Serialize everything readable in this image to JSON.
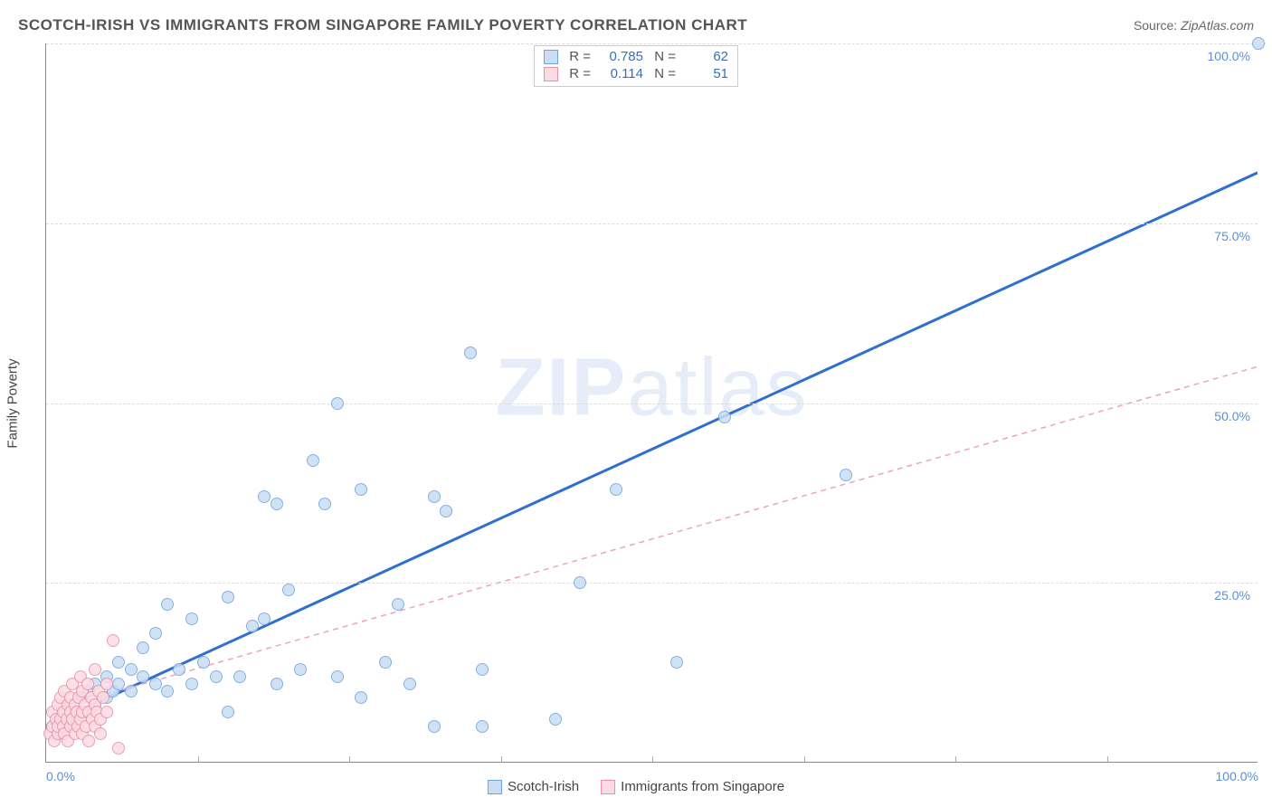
{
  "chart": {
    "type": "scatter",
    "title": "SCOTCH-IRISH VS IMMIGRANTS FROM SINGAPORE FAMILY POVERTY CORRELATION CHART",
    "source_prefix": "Source:",
    "source_name": "ZipAtlas.com",
    "ylabel": "Family Poverty",
    "watermark_bold": "ZIP",
    "watermark_rest": "atlas",
    "xlim": [
      0,
      100
    ],
    "ylim": [
      0,
      100
    ],
    "y_ticks": [
      0,
      25,
      50,
      75,
      100
    ],
    "y_tick_labels": [
      "0.0%",
      "25.0%",
      "50.0%",
      "75.0%",
      "100.0%"
    ],
    "x_ticks": [
      0,
      100
    ],
    "x_tick_labels": [
      "0.0%",
      "100.0%"
    ],
    "x_inner_ticks": [
      12.5,
      25,
      37.5,
      50,
      62.5,
      75,
      87.5
    ],
    "grid_color": "#dddddd",
    "axis_color": "#888888",
    "background_color": "#ffffff",
    "tick_label_color": "#5b8fd6",
    "title_color": "#555555"
  },
  "series": [
    {
      "id": "scotch_irish",
      "label": "Scotch-Irish",
      "marker_fill": "#c9ddf4",
      "marker_stroke": "#6fa3de",
      "marker_size_px": 14,
      "marker_opacity": 0.85,
      "trend": {
        "type": "solid",
        "color": "#2f6fd0",
        "width": 3,
        "y_at_x0": 5.0,
        "y_at_x100": 82.0
      },
      "stats": {
        "R": "0.785",
        "N": "62"
      },
      "points": [
        [
          0.5,
          5
        ],
        [
          1,
          4
        ],
        [
          1,
          6
        ],
        [
          1.5,
          7
        ],
        [
          2,
          5
        ],
        [
          2,
          8
        ],
        [
          2.5,
          6
        ],
        [
          3,
          9
        ],
        [
          3,
          7
        ],
        [
          3.5,
          10
        ],
        [
          4,
          8
        ],
        [
          4,
          11
        ],
        [
          5,
          9
        ],
        [
          5,
          12
        ],
        [
          5.5,
          10
        ],
        [
          6,
          11
        ],
        [
          6,
          14
        ],
        [
          7,
          10
        ],
        [
          7,
          13
        ],
        [
          8,
          12
        ],
        [
          8,
          16
        ],
        [
          9,
          11
        ],
        [
          9,
          18
        ],
        [
          10,
          10
        ],
        [
          10,
          22
        ],
        [
          11,
          13
        ],
        [
          12,
          11
        ],
        [
          12,
          20
        ],
        [
          13,
          14
        ],
        [
          14,
          12
        ],
        [
          15,
          7
        ],
        [
          15,
          23
        ],
        [
          16,
          12
        ],
        [
          17,
          19
        ],
        [
          18,
          20
        ],
        [
          18,
          37
        ],
        [
          19,
          11
        ],
        [
          19,
          36
        ],
        [
          20,
          24
        ],
        [
          21,
          13
        ],
        [
          22,
          42
        ],
        [
          23,
          36
        ],
        [
          24,
          12
        ],
        [
          24,
          50
        ],
        [
          26,
          9
        ],
        [
          26,
          38
        ],
        [
          28,
          14
        ],
        [
          29,
          22
        ],
        [
          30,
          11
        ],
        [
          32,
          5
        ],
        [
          32,
          37
        ],
        [
          33,
          35
        ],
        [
          35,
          57
        ],
        [
          36,
          5
        ],
        [
          36,
          13
        ],
        [
          42,
          6
        ],
        [
          44,
          25
        ],
        [
          47,
          38
        ],
        [
          52,
          14
        ],
        [
          56,
          48
        ],
        [
          66,
          40
        ],
        [
          100,
          100
        ]
      ]
    },
    {
      "id": "singapore",
      "label": "Immigrants from Singapore",
      "marker_fill": "#fcdbe4",
      "marker_stroke": "#e88fa8",
      "marker_size_px": 14,
      "marker_opacity": 0.85,
      "trend": {
        "type": "dashed",
        "color": "#e9a6b6",
        "width": 1.5,
        "y_at_x0": 7.0,
        "y_at_x100": 55.0
      },
      "stats": {
        "R": "0.114",
        "N": "51"
      },
      "points": [
        [
          0.3,
          4
        ],
        [
          0.5,
          5
        ],
        [
          0.5,
          7
        ],
        [
          0.7,
          3
        ],
        [
          0.8,
          6
        ],
        [
          1,
          4
        ],
        [
          1,
          5
        ],
        [
          1,
          8
        ],
        [
          1.2,
          6
        ],
        [
          1.2,
          9
        ],
        [
          1.4,
          5
        ],
        [
          1.4,
          7
        ],
        [
          1.5,
          4
        ],
        [
          1.5,
          10
        ],
        [
          1.7,
          6
        ],
        [
          1.8,
          8
        ],
        [
          1.8,
          3
        ],
        [
          2,
          5
        ],
        [
          2,
          7
        ],
        [
          2,
          9
        ],
        [
          2.2,
          6
        ],
        [
          2.2,
          11
        ],
        [
          2.4,
          4
        ],
        [
          2.4,
          8
        ],
        [
          2.5,
          7
        ],
        [
          2.6,
          5
        ],
        [
          2.7,
          9
        ],
        [
          2.8,
          6
        ],
        [
          2.8,
          12
        ],
        [
          3,
          7
        ],
        [
          3,
          4
        ],
        [
          3,
          10
        ],
        [
          3.2,
          8
        ],
        [
          3.3,
          5
        ],
        [
          3.4,
          11
        ],
        [
          3.5,
          7
        ],
        [
          3.5,
          3
        ],
        [
          3.7,
          9
        ],
        [
          3.8,
          6
        ],
        [
          4,
          8
        ],
        [
          4,
          5
        ],
        [
          4,
          13
        ],
        [
          4.2,
          7
        ],
        [
          4.3,
          10
        ],
        [
          4.5,
          6
        ],
        [
          4.5,
          4
        ],
        [
          4.7,
          9
        ],
        [
          5,
          7
        ],
        [
          5,
          11
        ],
        [
          5.5,
          17
        ],
        [
          6,
          2
        ]
      ]
    }
  ],
  "stats_legend_labels": {
    "R": "R =",
    "N": "N ="
  },
  "bottom_legend_order": [
    "scotch_irish",
    "singapore"
  ]
}
